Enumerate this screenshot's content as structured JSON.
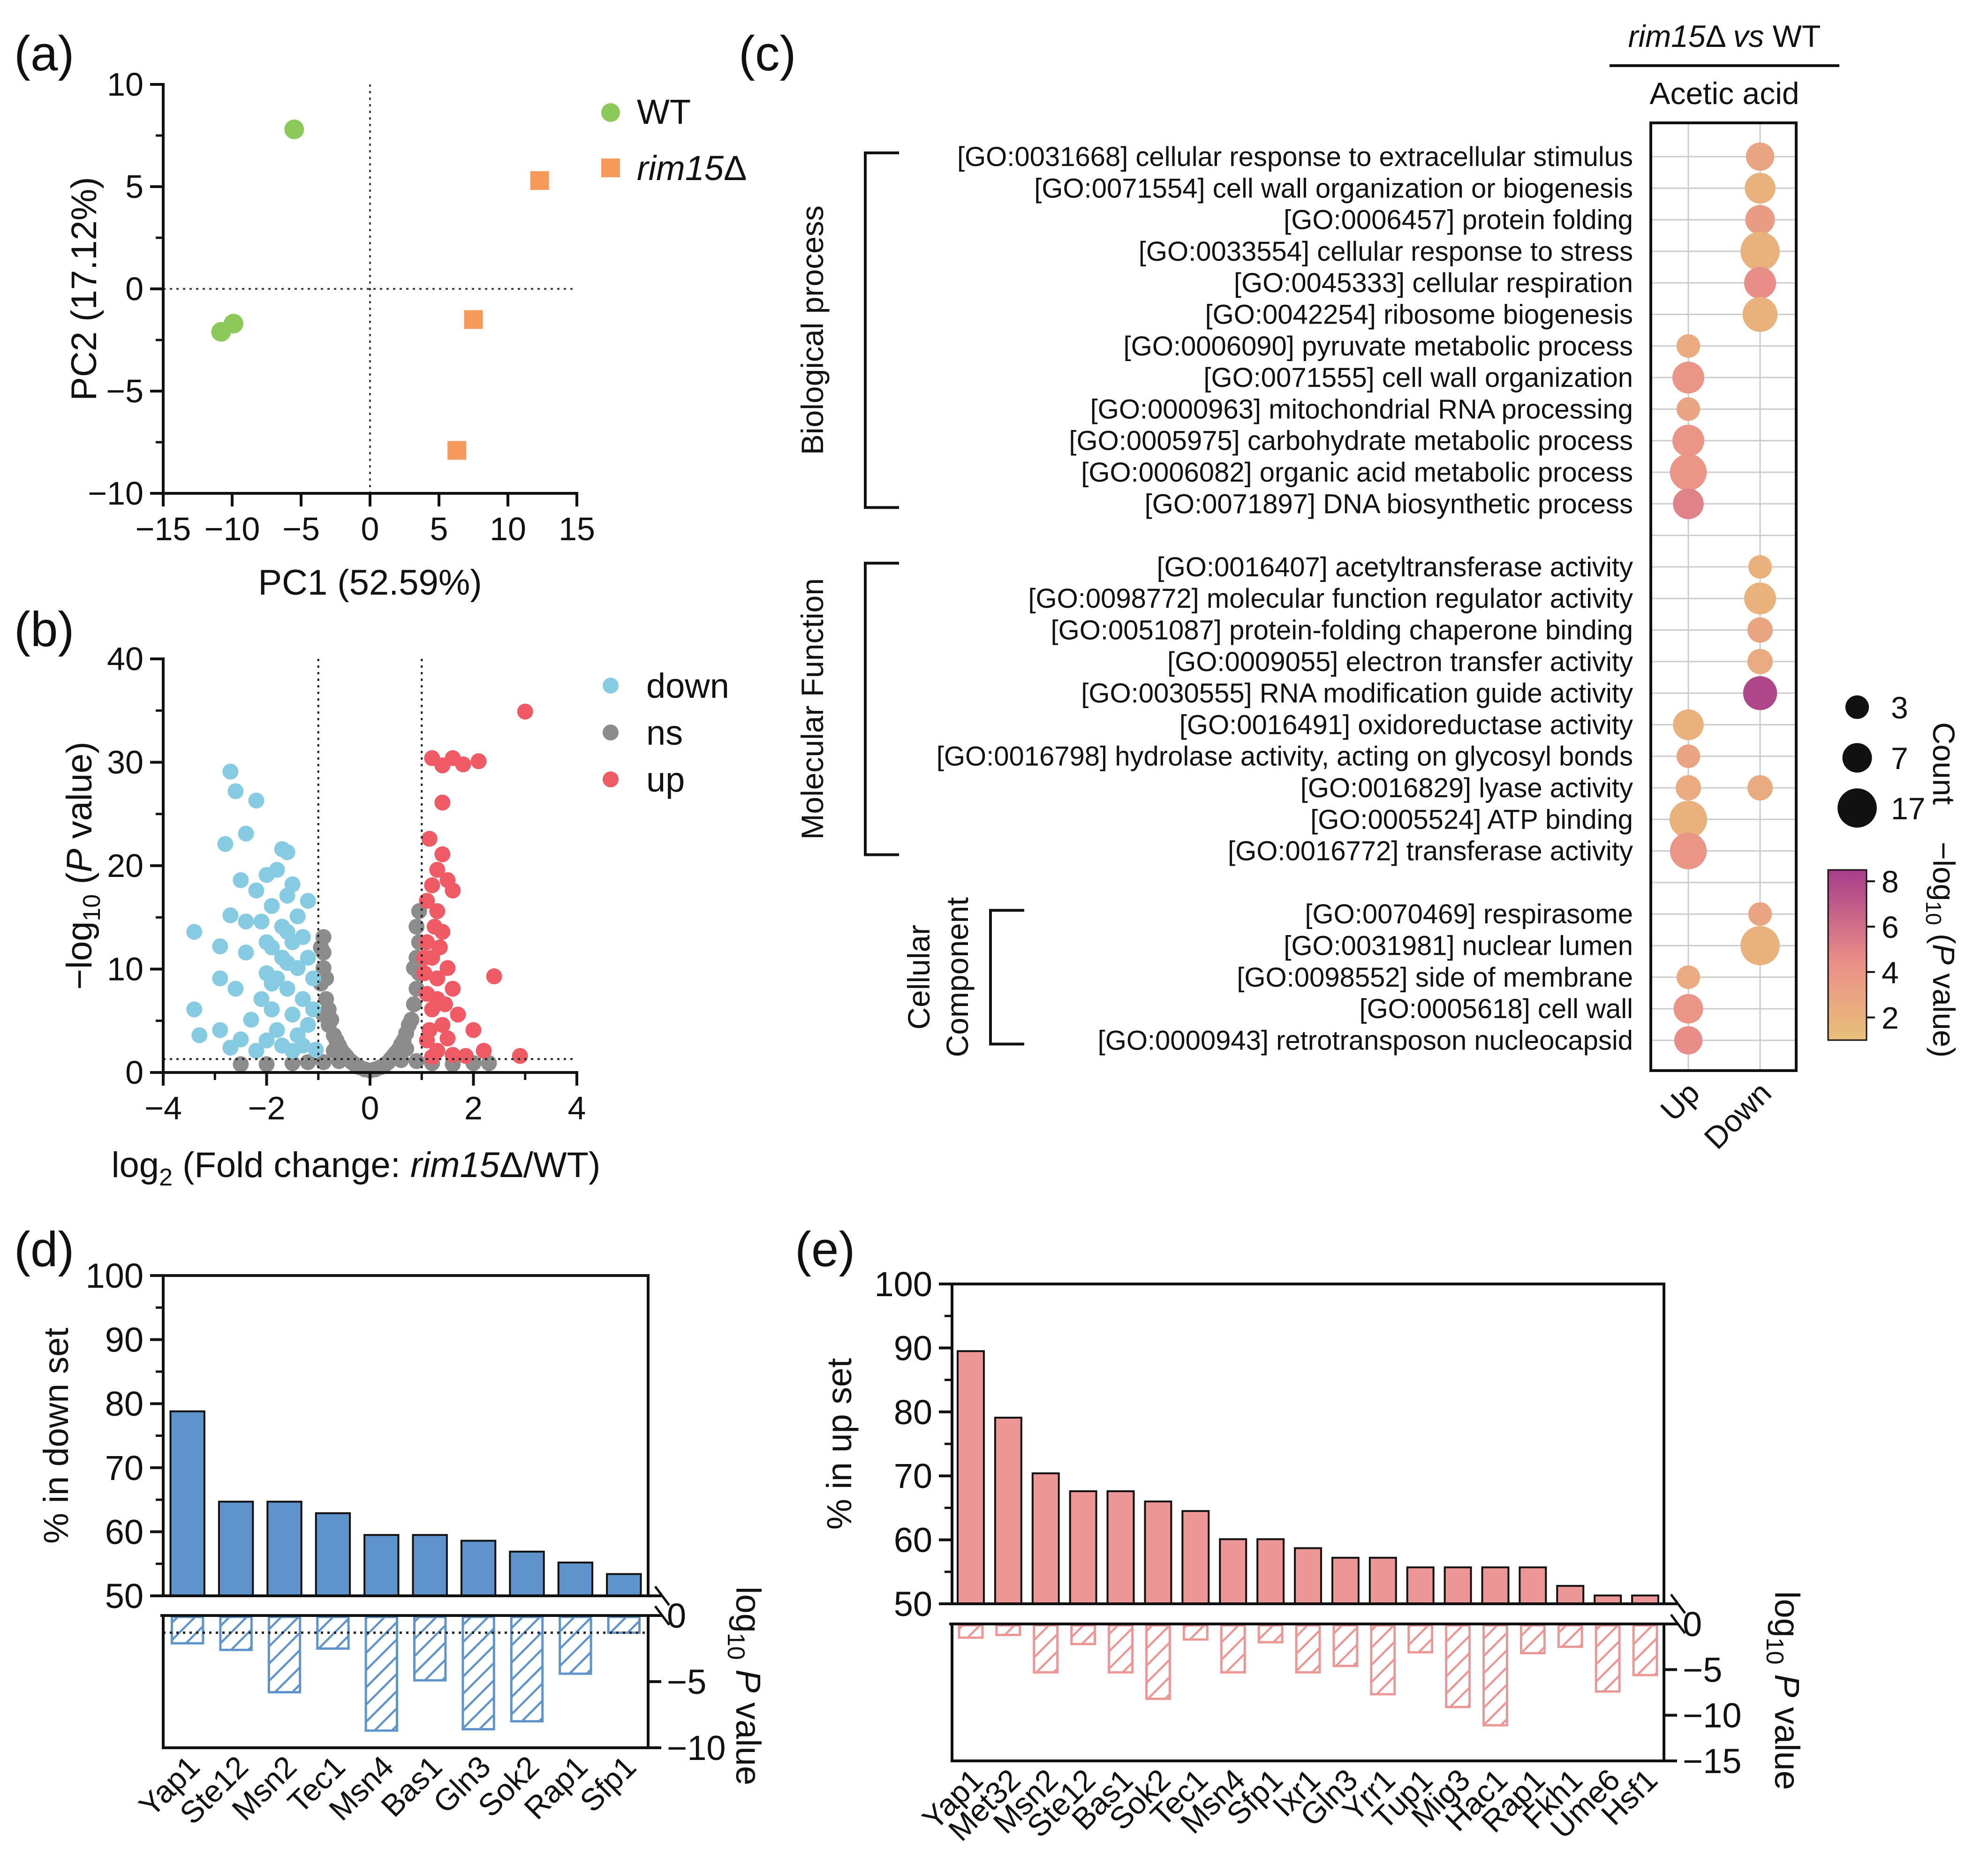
{
  "colors": {
    "wt": "#8dc95a",
    "rim15": "#f59a5a",
    "down": "#86cbe2",
    "ns": "#8c8c8c",
    "up": "#ef5a64",
    "bar_d": "#5f93cc",
    "bar_e": "#ec9696",
    "p_low": "#e8c078",
    "p_mid": "#ea9088",
    "p_high": "#a83c8a"
  },
  "chart_data": [
    {
      "panel": "(a)",
      "type": "scatter",
      "xlabel": "PC1 (52.59%)",
      "ylabel": "PC2 (17.12%)",
      "xlim": [
        -15,
        15
      ],
      "ylim": [
        -10,
        10
      ],
      "xticks": [
        "−15",
        "−10",
        "−5",
        "0",
        "5",
        "10",
        "15"
      ],
      "yticks": [
        "10",
        "5",
        "0",
        "−5",
        "−10"
      ],
      "series": [
        {
          "name": "WT",
          "marker": "circle",
          "points": [
            [
              -5.5,
              7.8
            ],
            [
              -10.8,
              -2.1
            ],
            [
              -9.9,
              -1.7
            ]
          ]
        },
        {
          "name": "rim15",
          "suffix": "Δ",
          "italic": true,
          "marker": "square",
          "points": [
            [
              12.3,
              5.3
            ],
            [
              7.5,
              -1.5
            ],
            [
              6.3,
              -7.9
            ]
          ]
        }
      ]
    },
    {
      "panel": "(b)",
      "type": "scatter",
      "ylabel_main": "−log",
      "ylabel_sub": "10",
      "ylabel_pre": " (",
      "ylabel_p": "P",
      "ylabel_post": " value)",
      "xlabel_main": "log",
      "xlabel_sub": "2",
      "xlabel_pre": " (Fold change: ",
      "xlabel_it": "rim15",
      "xlabel_post": "Δ/WT)",
      "xlim": [
        -4,
        4
      ],
      "ylim": [
        0,
        40
      ],
      "xticks": [
        "−4",
        "−2",
        "0",
        "2",
        "4"
      ],
      "yticks": [
        "40",
        "30",
        "20",
        "10",
        "0"
      ],
      "fc_threshold": [
        -1,
        1
      ],
      "p_threshold": 1.3,
      "legend": [
        "down",
        "ns",
        "up"
      ],
      "down": [
        [
          -3.4,
          13.6
        ],
        [
          -3.4,
          6.1
        ],
        [
          -3.3,
          3.6
        ],
        [
          -2.9,
          12.2
        ],
        [
          -2.9,
          4.1
        ],
        [
          -2.8,
          22.1
        ],
        [
          -2.7,
          29.1
        ],
        [
          -2.7,
          15.2
        ],
        [
          -2.7,
          2.4
        ],
        [
          -2.6,
          27.2
        ],
        [
          -2.6,
          8.1
        ],
        [
          -2.5,
          18.6
        ],
        [
          -2.5,
          3.2
        ],
        [
          -2.4,
          23.1
        ],
        [
          -2.4,
          11.6
        ],
        [
          -2.3,
          5.1
        ],
        [
          -2.2,
          26.3
        ],
        [
          -2.2,
          17.6
        ],
        [
          -2.2,
          2.1
        ],
        [
          -2.1,
          14.6
        ],
        [
          -2.1,
          7.1
        ],
        [
          -2.0,
          19.1
        ],
        [
          -2.0,
          9.6
        ],
        [
          -2.0,
          3.1
        ],
        [
          -1.9,
          16.1
        ],
        [
          -1.9,
          12.1
        ],
        [
          -1.9,
          6.1
        ],
        [
          -1.8,
          19.6
        ],
        [
          -1.8,
          9.1
        ],
        [
          -1.8,
          4.1
        ],
        [
          -1.7,
          21.6
        ],
        [
          -1.7,
          14.1
        ],
        [
          -1.7,
          11.1
        ],
        [
          -1.7,
          2.6
        ],
        [
          -1.6,
          21.3
        ],
        [
          -1.6,
          17.1
        ],
        [
          -1.6,
          8.1
        ],
        [
          -1.5,
          18.2
        ],
        [
          -1.5,
          12.6
        ],
        [
          -1.5,
          5.6
        ],
        [
          -1.4,
          15.1
        ],
        [
          -1.4,
          10.1
        ],
        [
          -1.4,
          3.6
        ],
        [
          -1.3,
          13.1
        ],
        [
          -1.3,
          7.1
        ],
        [
          -1.2,
          16.6
        ],
        [
          -1.2,
          11.1
        ],
        [
          -1.2,
          4.6
        ],
        [
          -1.1,
          9.1
        ],
        [
          -1.1,
          6.1
        ],
        [
          -1.05,
          2.2
        ],
        [
          -2.9,
          9.1
        ],
        [
          -2.4,
          14.6
        ],
        [
          -1.6,
          13.6
        ],
        [
          -1.9,
          8.6
        ],
        [
          -2.0,
          12.6
        ],
        [
          -1.5,
          2.1
        ],
        [
          -1.3,
          2.6
        ],
        [
          -1.6,
          10.6
        ]
      ],
      "up": [
        [
          3.0,
          34.9
        ],
        [
          1.2,
          30.4
        ],
        [
          1.4,
          29.7
        ],
        [
          1.6,
          30.4
        ],
        [
          1.8,
          29.8
        ],
        [
          2.1,
          30.1
        ],
        [
          1.4,
          26.1
        ],
        [
          1.4,
          21.1
        ],
        [
          1.3,
          19.6
        ],
        [
          1.5,
          18.6
        ],
        [
          1.2,
          18.1
        ],
        [
          1.6,
          17.6
        ],
        [
          1.1,
          16.6
        ],
        [
          1.3,
          15.6
        ],
        [
          1.4,
          13.6
        ],
        [
          1.1,
          12.6
        ],
        [
          1.2,
          11.1
        ],
        [
          1.5,
          10.1
        ],
        [
          1.3,
          9.1
        ],
        [
          1.6,
          8.1
        ],
        [
          2.4,
          9.3
        ],
        [
          1.1,
          7.6
        ],
        [
          1.2,
          6.1
        ],
        [
          1.7,
          5.6
        ],
        [
          1.4,
          4.6
        ],
        [
          2.0,
          4.1
        ],
        [
          1.1,
          3.1
        ],
        [
          1.3,
          2.1
        ],
        [
          1.6,
          1.7
        ],
        [
          2.9,
          1.6
        ],
        [
          1.15,
          22.6
        ],
        [
          1.25,
          14.1
        ],
        [
          1.35,
          12.1
        ],
        [
          1.05,
          9.6
        ],
        [
          1.45,
          6.6
        ],
        [
          1.5,
          3.3
        ],
        [
          1.85,
          1.6
        ],
        [
          1.2,
          1.5
        ],
        [
          2.2,
          2.1
        ],
        [
          1.15,
          4.1
        ],
        [
          1.3,
          7.1
        ],
        [
          1.05,
          11.1
        ]
      ],
      "ns": [
        [
          -0.9,
          13.1
        ],
        [
          -0.9,
          11.6
        ],
        [
          -0.9,
          10.1
        ],
        [
          -0.95,
          8.6
        ],
        [
          -0.85,
          7.1
        ],
        [
          -0.9,
          5.6
        ],
        [
          -0.8,
          6.1
        ],
        [
          -0.8,
          4.6
        ],
        [
          -0.7,
          3.6
        ],
        [
          -0.6,
          2.6
        ],
        [
          -0.5,
          1.8
        ],
        [
          -0.4,
          1.2
        ],
        [
          -0.3,
          0.8
        ],
        [
          -0.2,
          0.5
        ],
        [
          -0.1,
          0.3
        ],
        [
          0.0,
          0.2
        ],
        [
          0.1,
          0.3
        ],
        [
          0.2,
          0.5
        ],
        [
          0.3,
          0.8
        ],
        [
          0.4,
          1.3
        ],
        [
          0.5,
          1.9
        ],
        [
          0.6,
          2.7
        ],
        [
          0.7,
          3.8
        ],
        [
          0.8,
          5.1
        ],
        [
          0.85,
          6.6
        ],
        [
          0.9,
          8.1
        ],
        [
          0.95,
          9.6
        ],
        [
          0.9,
          11.1
        ],
        [
          0.95,
          12.6
        ],
        [
          0.9,
          14.1
        ],
        [
          0.95,
          15.6
        ],
        [
          -0.95,
          12.1
        ],
        [
          -0.7,
          2.1
        ],
        [
          0.7,
          2.3
        ],
        [
          -0.9,
          1.0
        ],
        [
          0.9,
          1.1
        ],
        [
          -0.6,
          1.1
        ],
        [
          0.6,
          1.2
        ],
        [
          -1.2,
          1.0
        ],
        [
          -1.5,
          0.9
        ],
        [
          -2.0,
          0.8
        ],
        [
          -2.5,
          0.8
        ],
        [
          1.2,
          0.9
        ],
        [
          1.6,
          0.8
        ],
        [
          2.0,
          0.9
        ],
        [
          2.3,
          0.9
        ],
        [
          -0.85,
          9.1
        ],
        [
          0.85,
          10.1
        ],
        [
          -0.75,
          5.1
        ],
        [
          0.75,
          4.6
        ],
        [
          -0.65,
          3.1
        ],
        [
          0.65,
          3.1
        ],
        [
          -0.55,
          2.1
        ],
        [
          0.55,
          2.2
        ],
        [
          -0.45,
          1.5
        ],
        [
          0.45,
          1.6
        ],
        [
          -0.35,
          1.0
        ],
        [
          0.35,
          1.0
        ]
      ]
    },
    {
      "panel": "(c)",
      "type": "dotplot",
      "header_it": "rim15",
      "header_mid": "Δ ",
      "header_vs": "vs",
      "header_post": " WT",
      "subheader": "Acetic acid",
      "columns": [
        "Up",
        "Down"
      ],
      "groups": [
        {
          "label": [
            "Biological process"
          ],
          "start": 0,
          "end": 11
        },
        {
          "label": [
            "Molecular Function"
          ],
          "start": 13,
          "end": 22
        },
        {
          "label": [
            "Cellular",
            "Component"
          ],
          "start": 24,
          "end": 28
        }
      ],
      "rows": [
        {
          "term": "[GO:0031668] cellular response to extracellular stimulus",
          "col": 1,
          "count": 6,
          "p": 3.0
        },
        {
          "term": "[GO:0071554] cell wall organization or biogenesis",
          "col": 1,
          "count": 8,
          "p": 2.0
        },
        {
          "term": "[GO:0006457] protein folding",
          "col": 1,
          "count": 7,
          "p": 3.5
        },
        {
          "term": "[GO:0033554] cellular response to stress",
          "col": 1,
          "count": 17,
          "p": 2.0
        },
        {
          "term": "[GO:0045333] cellular respiration",
          "col": 1,
          "count": 9,
          "p": 4.5
        },
        {
          "term": "[GO:0042254] ribosome biogenesis",
          "col": 1,
          "count": 12,
          "p": 2.0
        },
        {
          "term": "[GO:0006090] pyruvate metabolic process",
          "col": 0,
          "count": 3,
          "p": 2.5
        },
        {
          "term": "[GO:0071555] cell wall organization",
          "col": 0,
          "count": 9,
          "p": 4.0
        },
        {
          "term": "[GO:0000963] mitochondrial RNA processing",
          "col": 0,
          "count": 3,
          "p": 3.0
        },
        {
          "term": "[GO:0005975] carbohydrate metabolic process",
          "col": 0,
          "count": 9,
          "p": 4.0
        },
        {
          "term": "[GO:0006082] organic acid metabolic process",
          "col": 0,
          "count": 14,
          "p": 4.0
        },
        {
          "term": "[GO:0071897] DNA biosynthetic process",
          "col": 0,
          "count": 8,
          "p": 5.0
        },
        {
          "term": "",
          "col": -1,
          "count": 0,
          "p": 0
        },
        {
          "term": "[GO:0016407] acetyltransferase activity",
          "col": 1,
          "count": 3,
          "p": 2.0
        },
        {
          "term": "[GO:0098772] molecular function regulator activity",
          "col": 1,
          "count": 9,
          "p": 2.0
        },
        {
          "term": "[GO:0051087] protein-folding chaperone binding",
          "col": 1,
          "count": 4,
          "p": 3.0
        },
        {
          "term": "[GO:0009055] electron transfer activity",
          "col": 1,
          "count": 4,
          "p": 2.5
        },
        {
          "term": "[GO:0030555] RNA modification guide activity",
          "col": 1,
          "count": 11,
          "p": 8.0
        },
        {
          "term": "[GO:0016491] oxidoreductase activity",
          "col": 0,
          "count": 8,
          "p": 2.0
        },
        {
          "term": "[GO:0016798] hydrolase activity, acting on glycosyl bonds",
          "col": 0,
          "count": 3,
          "p": 3.0
        },
        {
          "term": "[GO:0016829] lyase activity",
          "col": 2,
          "count": 4,
          "p": 2.5
        },
        {
          "term": "[GO:0005524] ATP binding",
          "col": 0,
          "count": 15,
          "p": 2.0
        },
        {
          "term": "[GO:0016772] transferase activity",
          "col": 0,
          "count": 14,
          "p": 4.0
        },
        {
          "term": "",
          "col": -1,
          "count": 0,
          "p": 0
        },
        {
          "term": "[GO:0070469] respirasome",
          "col": 1,
          "count": 3,
          "p": 3.0
        },
        {
          "term": "[GO:0031981] nuclear lumen",
          "col": 1,
          "count": 17,
          "p": 2.0
        },
        {
          "term": "[GO:0098552] side of membrane",
          "col": 0,
          "count": 3,
          "p": 2.5
        },
        {
          "term": "[GO:0005618] cell wall",
          "col": 0,
          "count": 7,
          "p": 4.0
        },
        {
          "term": "[GO:0000943] retrotransposon nucleocapsid",
          "col": 0,
          "count": 6,
          "p": 4.5
        }
      ],
      "size_legend": {
        "title": "Count",
        "items": [
          3,
          7,
          17
        ]
      },
      "color_legend": {
        "title_pre": "−log",
        "title_sub": "10",
        "title_mid": " (",
        "title_p": "P",
        "title_post": " value)",
        "ticks": [
          "8",
          "6",
          "4",
          "2"
        ],
        "range": [
          1,
          8.5
        ]
      }
    },
    {
      "panel": "(d)",
      "type": "bar",
      "categories": [
        "Yap1",
        "Ste12",
        "Msn2",
        "Tec1",
        "Msn4",
        "Bas1",
        "Gln3",
        "Sok2",
        "Rap1",
        "Sfp1"
      ],
      "values": [
        78.8,
        64.7,
        64.7,
        62.9,
        59.5,
        59.5,
        58.6,
        56.9,
        55.2,
        53.4
      ],
      "log_p": [
        -2.1,
        -2.6,
        -5.8,
        -2.5,
        -8.7,
        -4.9,
        -8.6,
        -8.0,
        -4.4,
        -1.3
      ],
      "ylim": [
        50,
        100
      ],
      "ylim2": [
        -10,
        0
      ],
      "threshold": -1.3,
      "yticks": [
        "100",
        "90",
        "80",
        "70",
        "60",
        "50"
      ],
      "y2ticks": [
        "0",
        "−5",
        "−10"
      ],
      "ylabel": "% in down set",
      "y2label_pre": "log",
      "y2label_sub": "10",
      "y2label_p": "P",
      "y2label_post": " value"
    },
    {
      "panel": "(e)",
      "type": "bar",
      "categories": [
        "Yap1",
        "Met32",
        "Msn2",
        "Ste12",
        "Bas1",
        "Sok2",
        "Tec1",
        "Msn4",
        "Sfp1",
        "Ixr1",
        "Gln3",
        "Yrr1",
        "Tup1",
        "Mig3",
        "Hac1",
        "Rap1",
        "Fkh1",
        "Ume6",
        "Hsf1"
      ],
      "values": [
        89.5,
        79.1,
        70.4,
        67.6,
        67.6,
        66.0,
        64.5,
        60.1,
        60.1,
        58.7,
        57.2,
        57.2,
        55.7,
        55.7,
        55.7,
        55.7,
        52.8,
        51.3,
        51.3
      ],
      "log_p": [
        -1.5,
        -1.2,
        -5.3,
        -2.2,
        -5.3,
        -8.2,
        -1.7,
        -5.3,
        -2.0,
        -5.3,
        -4.6,
        -7.7,
        -3.1,
        -9.1,
        -11.1,
        -3.2,
        -2.5,
        -7.4,
        -5.6
      ],
      "ylim": [
        50,
        100
      ],
      "ylim2": [
        -15,
        0
      ],
      "yticks": [
        "100",
        "90",
        "80",
        "70",
        "60",
        "50"
      ],
      "y2ticks": [
        "0",
        "−5",
        "−10",
        "−15"
      ],
      "ylabel": "% in up set",
      "y2label_pre": "log",
      "y2label_sub": "10",
      "y2label_p": "P",
      "y2label_post": " value"
    }
  ]
}
